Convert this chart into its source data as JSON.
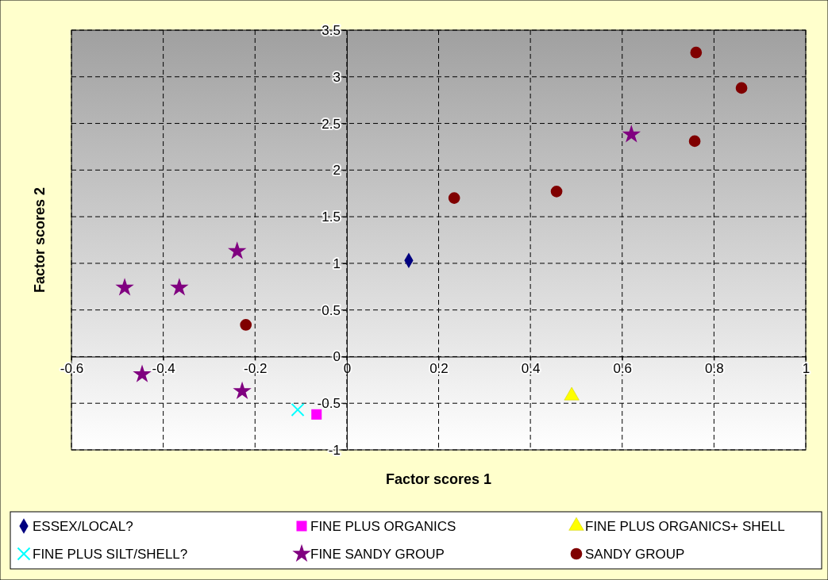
{
  "chart_data": {
    "type": "scatter",
    "xlabel": "Factor scores 1",
    "ylabel": "Factor scores 2",
    "xlim": [
      -0.6,
      1
    ],
    "ylim": [
      -1,
      3.5
    ],
    "xticks": [
      -0.6,
      -0.4,
      -0.2,
      0,
      0.2,
      0.4,
      0.6,
      0.8,
      1
    ],
    "yticks": [
      -1,
      -0.5,
      0,
      0.5,
      1,
      1.5,
      2,
      2.5,
      3,
      3.5
    ],
    "grid": true,
    "legend": "bottom",
    "series": [
      {
        "name": "ESSEX/LOCAL?",
        "color": "#000080",
        "marker": "diamond",
        "x": [
          0.135
        ],
        "values": [
          1.03
        ]
      },
      {
        "name": "FINE PLUS ORGANICS",
        "color": "#ff00ff",
        "marker": "square",
        "x": [
          -0.066
        ],
        "values": [
          -0.62
        ]
      },
      {
        "name": "FINE PLUS ORGANICS+ SHELL",
        "color": "#ffff00",
        "marker": "triangle",
        "x": [
          0.49
        ],
        "values": [
          -0.42
        ]
      },
      {
        "name": "FINE PLUS SILT/SHELL?",
        "color": "#00ffff",
        "marker": "cross",
        "x": [
          -0.107
        ],
        "values": [
          -0.57
        ]
      },
      {
        "name": "FINE SANDY GROUP",
        "color": "#800080",
        "marker": "star",
        "x": [
          -0.484,
          -0.365,
          -0.239,
          -0.446,
          -0.228,
          0.62
        ],
        "values": [
          0.74,
          0.74,
          1.13,
          -0.19,
          -0.37,
          2.38
        ]
      },
      {
        "name": "SANDY GROUP",
        "color": "#800000",
        "marker": "circle",
        "x": [
          -0.22,
          0.234,
          0.457,
          0.761,
          0.86,
          0.758
        ],
        "values": [
          0.34,
          1.7,
          1.77,
          3.26,
          2.88,
          2.31
        ]
      }
    ]
  }
}
